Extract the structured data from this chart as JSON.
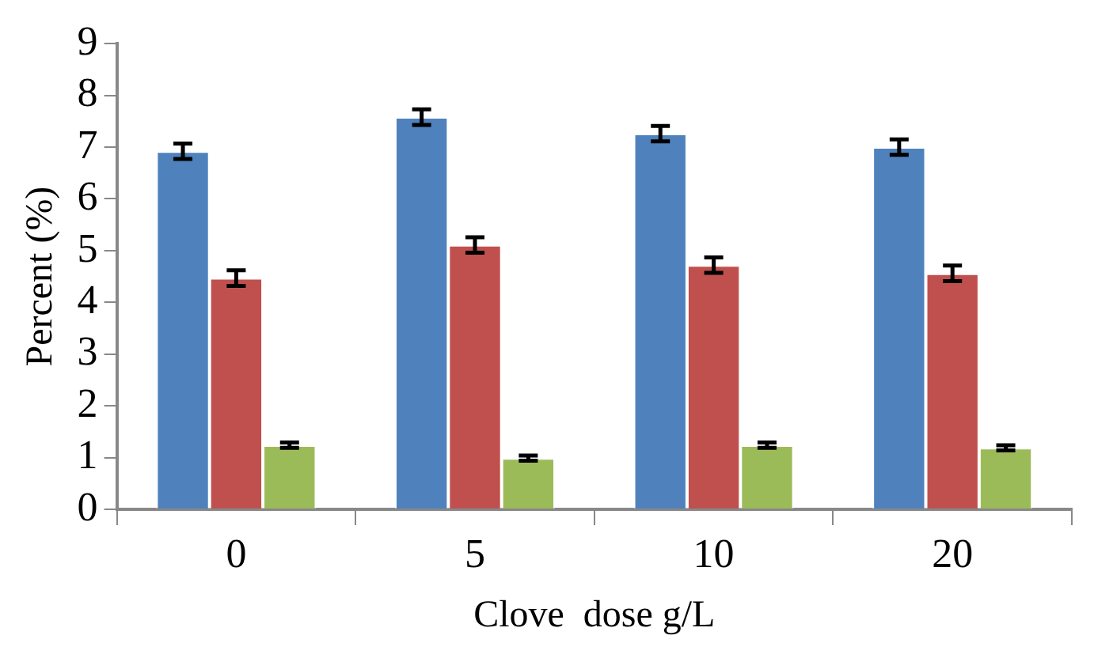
{
  "chart_data": {
    "type": "bar",
    "xlabel": "Clove  dose g/L",
    "ylabel": "Percent (%)",
    "categories": [
      "0",
      "5",
      "10",
      "20"
    ],
    "series": [
      {
        "color": "#4f81bd",
        "values": [
          6.92,
          7.58,
          7.26,
          7.0
        ],
        "errors": [
          0.15,
          0.15,
          0.15,
          0.15
        ]
      },
      {
        "color": "#c0504d",
        "values": [
          4.47,
          5.11,
          4.72,
          4.56
        ],
        "errors": [
          0.15,
          0.15,
          0.15,
          0.15
        ]
      },
      {
        "color": "#9bbb59",
        "values": [
          1.24,
          0.99,
          1.24,
          1.19
        ],
        "errors": [
          0.05,
          0.05,
          0.05,
          0.05
        ]
      }
    ],
    "ylim": [
      0,
      9
    ],
    "yticks": [
      0,
      1,
      2,
      3,
      4,
      5,
      6,
      7,
      8,
      9
    ],
    "grid": false,
    "legend": false
  }
}
